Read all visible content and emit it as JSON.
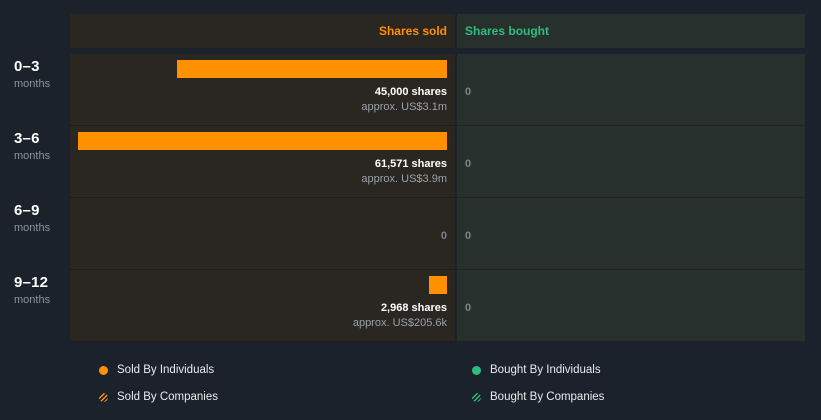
{
  "header": {
    "sold_label": "Shares sold",
    "bought_label": "Shares bought"
  },
  "colors": {
    "sold_accent": "#ff9100",
    "bought_accent": "#2dbd7f",
    "background": "#1b222c",
    "sold_panel": "#2a2622",
    "bought_panel": "#28302e"
  },
  "chart_data": {
    "type": "bar",
    "orientation": "horizontal",
    "categories": [
      "0–3 months",
      "3–6 months",
      "6–9 months",
      "9–12 months"
    ],
    "series": [
      {
        "name": "Shares sold",
        "color": "#ff9100",
        "values": [
          45000,
          61571,
          0,
          2968
        ]
      },
      {
        "name": "Shares bought",
        "color": "#2dbd7f",
        "values": [
          0,
          0,
          0,
          0
        ]
      }
    ],
    "value_labels_sold": [
      "45,000 shares",
      "61,571 shares",
      "0",
      "2,968 shares"
    ],
    "approx_labels_sold": [
      "approx. US$3.1m",
      "approx. US$3.9m",
      "",
      "approx. US$205.6k"
    ],
    "value_labels_bought": [
      "0",
      "0",
      "0",
      "0"
    ],
    "legend_position": "bottom",
    "grid": false
  },
  "rows": [
    {
      "period": "0–3",
      "period_unit": "months",
      "sold_text": "45,000 shares",
      "sold_approx": "approx. US$3.1m",
      "bought_text": "0"
    },
    {
      "period": "3–6",
      "period_unit": "months",
      "sold_text": "61,571 shares",
      "sold_approx": "approx. US$3.9m",
      "bought_text": "0"
    },
    {
      "period": "6–9",
      "period_unit": "months",
      "sold_text": "0",
      "sold_approx": "",
      "bought_text": "0"
    },
    {
      "period": "9–12",
      "period_unit": "months",
      "sold_text": "2,968 shares",
      "sold_approx": "approx. US$205.6k",
      "bought_text": "0"
    }
  ],
  "legend": {
    "sold_individuals": "Sold By Individuals",
    "sold_companies": "Sold By Companies",
    "bought_individuals": "Bought By Individuals",
    "bought_companies": "Bought By Companies"
  }
}
